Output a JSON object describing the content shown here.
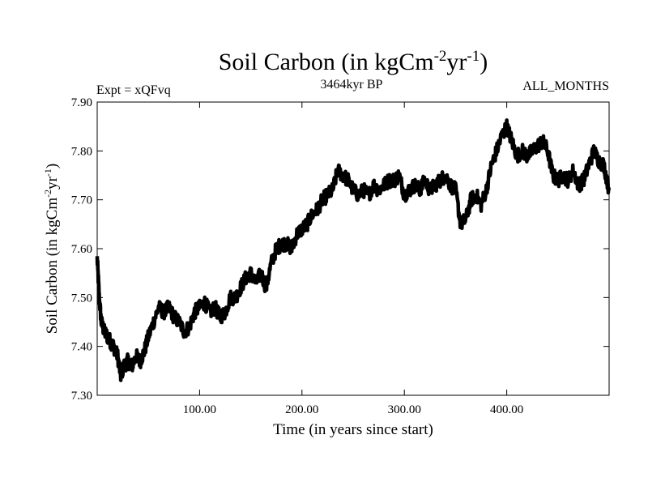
{
  "chart_data": {
    "type": "line",
    "title": {
      "main": "Soil Carbon (in kgCm",
      "sup1": "-2",
      "mid": "yr",
      "sup2": "-1",
      "end": ")"
    },
    "subtitle_left": "Expt = xQFvq",
    "subtitle_center": "3464kyr BP",
    "subtitle_right": "ALL_MONTHS",
    "xlabel": "Time (in years since start)",
    "ylabel": {
      "main": "Soil Carbon (in kgCm",
      "sup1": "-2",
      "mid": "yr",
      "sup2": "-1",
      "end": ")"
    },
    "xlim": [
      0,
      500
    ],
    "ylim": [
      7.3,
      7.9
    ],
    "xticks": [
      100,
      200,
      300,
      400
    ],
    "xtick_labels": [
      "100.00",
      "200.00",
      "300.00",
      "400.00"
    ],
    "yticks": [
      7.3,
      7.4,
      7.5,
      7.6,
      7.7,
      7.8,
      7.9
    ],
    "ytick_labels": [
      "7.30",
      "7.40",
      "7.50",
      "7.60",
      "7.70",
      "7.80",
      "7.90"
    ],
    "grid": false,
    "series": [
      {
        "x": [
          0,
          2,
          4,
          7,
          10,
          13,
          16,
          20,
          23,
          26,
          30,
          34,
          38,
          42,
          46,
          50,
          55,
          60,
          65,
          70,
          75,
          80,
          85,
          90,
          95,
          100,
          105,
          110,
          115,
          120,
          125,
          130,
          135,
          140,
          145,
          150,
          155,
          160,
          165,
          170,
          175,
          180,
          185,
          190,
          195,
          200,
          205,
          210,
          215,
          220,
          225,
          230,
          235,
          240,
          245,
          250,
          255,
          260,
          265,
          270,
          275,
          280,
          285,
          290,
          295,
          300,
          305,
          310,
          315,
          320,
          325,
          330,
          335,
          340,
          345,
          350,
          355,
          360,
          365,
          370,
          375,
          380,
          385,
          390,
          395,
          400,
          405,
          410,
          415,
          420,
          425,
          430,
          435,
          440,
          445,
          450,
          455,
          460,
          465,
          470,
          475,
          480,
          485,
          490,
          495,
          500
        ],
        "y": [
          7.58,
          7.5,
          7.45,
          7.43,
          7.42,
          7.41,
          7.4,
          7.38,
          7.34,
          7.36,
          7.37,
          7.36,
          7.38,
          7.37,
          7.39,
          7.42,
          7.45,
          7.48,
          7.47,
          7.48,
          7.46,
          7.45,
          7.43,
          7.44,
          7.47,
          7.48,
          7.49,
          7.47,
          7.48,
          7.46,
          7.47,
          7.5,
          7.5,
          7.52,
          7.54,
          7.55,
          7.53,
          7.55,
          7.52,
          7.57,
          7.6,
          7.61,
          7.61,
          7.6,
          7.63,
          7.64,
          7.65,
          7.67,
          7.68,
          7.7,
          7.71,
          7.72,
          7.76,
          7.75,
          7.74,
          7.72,
          7.71,
          7.72,
          7.71,
          7.73,
          7.72,
          7.73,
          7.74,
          7.74,
          7.75,
          7.71,
          7.72,
          7.73,
          7.72,
          7.74,
          7.72,
          7.73,
          7.74,
          7.75,
          7.73,
          7.72,
          7.65,
          7.66,
          7.7,
          7.71,
          7.69,
          7.72,
          7.77,
          7.8,
          7.83,
          7.85,
          7.82,
          7.79,
          7.8,
          7.79,
          7.8,
          7.81,
          7.82,
          7.8,
          7.75,
          7.74,
          7.75,
          7.74,
          7.76,
          7.73,
          7.74,
          7.77,
          7.8,
          7.78,
          7.77,
          7.72
        ]
      }
    ]
  }
}
